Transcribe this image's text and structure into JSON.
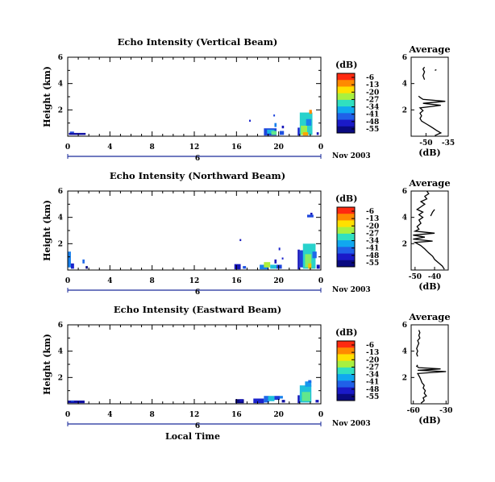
{
  "figure": {
    "x_axis_label": "Local Time",
    "date_label": "Nov 2003",
    "colorbar_unit": "(dB)",
    "colorbar_ticks": [
      "-6",
      "-13",
      "-20",
      "-27",
      "-34",
      "-41",
      "-48",
      "-55"
    ],
    "colorbar_colors": [
      "#ff2a10",
      "#ff8a00",
      "#ffe000",
      "#a8f040",
      "#30e0c0",
      "#10a8f0",
      "#2060e8",
      "#1a1ac8",
      "#0a0a80"
    ],
    "x_ticks": [
      "0",
      "4",
      "8",
      "12",
      "16",
      "20",
      "0"
    ],
    "y_ticks": [
      "6",
      "4",
      "2"
    ],
    "day_marker": "6"
  },
  "chart_data": [
    {
      "type": "heatmap",
      "title": "Echo Intensity (Vertical Beam)",
      "xlabel": "",
      "ylabel": "Height (km)",
      "xlim": [
        0,
        24
      ],
      "ylim": [
        0,
        6
      ],
      "cells": [
        [
          0.1,
          0.1,
          1.6,
          0.15,
          -52
        ],
        [
          0.2,
          0.25,
          0.4,
          0.1,
          -45
        ],
        [
          17.2,
          1.1,
          0.15,
          0.15,
          -48
        ],
        [
          18.6,
          0.05,
          1.2,
          0.55,
          -45
        ],
        [
          18.9,
          0.2,
          0.7,
          0.3,
          -35
        ],
        [
          19.3,
          0.1,
          0.5,
          0.3,
          -28
        ],
        [
          19.6,
          0.7,
          0.2,
          0.3,
          -40
        ],
        [
          19.5,
          1.5,
          0.15,
          0.15,
          -45
        ],
        [
          20.1,
          0.1,
          0.4,
          0.3,
          -44
        ],
        [
          20.3,
          0.6,
          0.2,
          0.2,
          -50
        ],
        [
          21.8,
          0.05,
          0.2,
          0.6,
          -48
        ],
        [
          22.0,
          0.1,
          1.2,
          1.7,
          -32
        ],
        [
          22.1,
          0.1,
          0.6,
          0.7,
          -25
        ],
        [
          22.6,
          0.8,
          0.5,
          0.5,
          -40
        ],
        [
          22.9,
          1.7,
          0.25,
          0.3,
          -12
        ],
        [
          22.3,
          0.05,
          0.5,
          0.25,
          -14
        ],
        [
          23.6,
          0.1,
          0.2,
          0.2,
          -50
        ]
      ],
      "colorbar": {
        "label": "(dB)",
        "range": [
          -55,
          -6
        ]
      },
      "profile": {
        "title": "Average",
        "xlabel": "(dB)",
        "xlim": [
          -60,
          -35
        ],
        "xticks": [
          "-50",
          "-35"
        ],
        "ylim": [
          0,
          6
        ],
        "yticks": [
          "6",
          "4",
          "2"
        ],
        "points": [
          [
            -44,
            0.05
          ],
          [
            -40,
            0.25
          ],
          [
            -43,
            0.45
          ],
          [
            -45,
            0.6
          ],
          [
            -47,
            0.75
          ],
          [
            -50,
            0.95
          ],
          [
            -53,
            1.15
          ],
          [
            -54,
            1.35
          ],
          [
            -53,
            1.55
          ],
          [
            -54,
            1.75
          ],
          [
            -52,
            1.95
          ],
          [
            -54,
            2.15
          ],
          [
            -40,
            2.35
          ],
          [
            -52,
            2.5
          ],
          [
            -37,
            2.65
          ],
          [
            -52,
            2.8
          ],
          [
            -54,
            2.95
          ],
          [
            -55,
            3.05
          ]
        ],
        "points2": [
          [
            -51,
            4.3
          ],
          [
            -52,
            4.6
          ],
          [
            -51,
            4.9
          ],
          [
            -52,
            5.1
          ],
          [
            -51,
            5.25
          ]
        ],
        "points3": [
          [
            -44,
            5.0
          ],
          [
            -43,
            5.05
          ]
        ]
      }
    },
    {
      "type": "heatmap",
      "title": "Echo Intensity (Northward Beam)",
      "xlabel": "",
      "ylabel": "Height (km)",
      "xlim": [
        0,
        24
      ],
      "ylim": [
        0,
        6
      ],
      "cells": [
        [
          0.0,
          0.2,
          0.3,
          1.2,
          -40
        ],
        [
          0.3,
          0.1,
          0.3,
          0.4,
          -48
        ],
        [
          1.4,
          0.5,
          0.2,
          0.3,
          -42
        ],
        [
          1.7,
          0.1,
          0.2,
          0.2,
          -55
        ],
        [
          15.8,
          0.05,
          0.6,
          0.4,
          -50
        ],
        [
          16.6,
          0.1,
          0.3,
          0.2,
          -44
        ],
        [
          16.3,
          2.2,
          0.15,
          0.15,
          -50
        ],
        [
          18.2,
          0.05,
          0.8,
          0.35,
          -40
        ],
        [
          18.6,
          0.2,
          0.6,
          0.4,
          -24
        ],
        [
          19.2,
          0.1,
          0.6,
          0.3,
          -34
        ],
        [
          19.8,
          0.1,
          0.5,
          0.3,
          -45
        ],
        [
          19.6,
          0.5,
          0.2,
          0.3,
          -50
        ],
        [
          20.0,
          1.5,
          0.15,
          0.2,
          -48
        ],
        [
          20.3,
          0.8,
          0.15,
          0.15,
          -48
        ],
        [
          21.8,
          0.05,
          0.2,
          1.5,
          -50
        ],
        [
          22.0,
          0.2,
          0.4,
          1.3,
          -45
        ],
        [
          22.3,
          0.1,
          1.2,
          1.9,
          -32
        ],
        [
          22.5,
          0.2,
          0.6,
          1.0,
          -26
        ],
        [
          22.8,
          0.1,
          0.3,
          0.4,
          -16
        ],
        [
          23.2,
          0.9,
          0.4,
          0.5,
          -42
        ],
        [
          22.7,
          4.0,
          0.6,
          0.2,
          -45
        ],
        [
          23.0,
          4.2,
          0.2,
          0.15,
          -50
        ],
        [
          23.6,
          0.1,
          0.3,
          0.3,
          -50
        ]
      ],
      "colorbar": {
        "label": "(dB)",
        "range": [
          -55,
          -6
        ]
      },
      "profile": {
        "title": "Average",
        "xlabel": "(dB)",
        "xlim": [
          -52,
          -33
        ],
        "xticks": [
          "-50",
          "-40"
        ],
        "ylim": [
          0,
          6
        ],
        "yticks": [
          "6",
          "4",
          "2"
        ],
        "points": [
          [
            -35,
            0.05
          ],
          [
            -36,
            0.3
          ],
          [
            -38,
            0.55
          ],
          [
            -40,
            0.8
          ],
          [
            -41,
            1.05
          ],
          [
            -43,
            1.3
          ],
          [
            -45,
            1.6
          ],
          [
            -47,
            1.85
          ],
          [
            -50,
            2.1
          ],
          [
            -41,
            2.2
          ],
          [
            -51,
            2.35
          ],
          [
            -45,
            2.5
          ],
          [
            -51,
            2.65
          ],
          [
            -40,
            2.8
          ],
          [
            -50,
            2.95
          ],
          [
            -48,
            3.1
          ],
          [
            -49,
            3.3
          ],
          [
            -47,
            3.55
          ],
          [
            -48,
            3.8
          ],
          [
            -46,
            4.0
          ],
          [
            -48,
            4.2
          ],
          [
            -46,
            4.4
          ],
          [
            -49,
            4.6
          ],
          [
            -47,
            4.8
          ],
          [
            -45,
            5.0
          ],
          [
            -47,
            5.2
          ],
          [
            -44,
            5.4
          ],
          [
            -45,
            5.6
          ],
          [
            -43,
            5.8
          ],
          [
            -44,
            6.0
          ]
        ],
        "points2": [
          [
            -42,
            4.1
          ],
          [
            -41,
            4.4
          ],
          [
            -40,
            4.6
          ]
        ]
      }
    },
    {
      "type": "heatmap",
      "title": "Echo Intensity (Eastward Beam)",
      "xlabel": "Local Time",
      "ylabel": "Height (km)",
      "xlim": [
        0,
        24
      ],
      "ylim": [
        0,
        6
      ],
      "cells": [
        [
          0.0,
          0.05,
          1.6,
          0.2,
          -52
        ],
        [
          0.3,
          0.15,
          0.3,
          0.1,
          -45
        ],
        [
          15.9,
          0.05,
          0.8,
          0.3,
          -55
        ],
        [
          16.3,
          0.15,
          0.3,
          0.2,
          -50
        ],
        [
          17.6,
          0.05,
          1.0,
          0.35,
          -48
        ],
        [
          18.6,
          0.1,
          0.5,
          0.5,
          -42
        ],
        [
          19.0,
          0.2,
          0.6,
          0.4,
          -34
        ],
        [
          19.6,
          0.3,
          0.5,
          0.3,
          -46
        ],
        [
          20.1,
          0.4,
          0.3,
          0.2,
          -40
        ],
        [
          20.3,
          0.1,
          0.3,
          0.2,
          -52
        ],
        [
          21.8,
          0.05,
          0.2,
          0.6,
          -50
        ],
        [
          22.0,
          0.1,
          1.1,
          1.3,
          -34
        ],
        [
          22.2,
          0.2,
          0.8,
          0.7,
          -28
        ],
        [
          22.5,
          1.3,
          0.6,
          0.4,
          -38
        ],
        [
          22.8,
          1.6,
          0.3,
          0.2,
          -42
        ],
        [
          23.5,
          0.1,
          0.3,
          0.2,
          -50
        ]
      ],
      "colorbar": {
        "label": "(dB)",
        "range": [
          -55,
          -6
        ]
      },
      "profile": {
        "title": "Average",
        "xlabel": "(dB)",
        "xlim": [
          -62,
          -28
        ],
        "xticks": [
          "-60",
          "-30"
        ],
        "ylim": [
          0,
          6
        ],
        "yticks": [
          "6",
          "4",
          "2"
        ],
        "points": [
          [
            -53,
            0.05
          ],
          [
            -50,
            0.25
          ],
          [
            -51,
            0.45
          ],
          [
            -48,
            0.6
          ],
          [
            -50,
            0.8
          ],
          [
            -49,
            1.0
          ],
          [
            -51,
            1.2
          ],
          [
            -50,
            1.4
          ],
          [
            -52,
            1.6
          ],
          [
            -53,
            1.8
          ],
          [
            -54,
            2.0
          ],
          [
            -55,
            2.15
          ],
          [
            -56,
            2.3
          ],
          [
            -30,
            2.45
          ],
          [
            -56,
            2.55
          ],
          [
            -35,
            2.65
          ],
          [
            -55,
            2.75
          ],
          [
            -57,
            2.85
          ],
          [
            -56,
            2.95
          ]
        ],
        "points2": [
          [
            -56,
            3.6
          ],
          [
            -57,
            3.8
          ],
          [
            -56,
            4.0
          ],
          [
            -57,
            4.2
          ],
          [
            -56,
            4.4
          ],
          [
            -55,
            4.6
          ],
          [
            -56,
            4.8
          ],
          [
            -54,
            5.0
          ],
          [
            -55,
            5.2
          ],
          [
            -54,
            5.4
          ],
          [
            -55,
            5.6
          ]
        ]
      }
    }
  ]
}
